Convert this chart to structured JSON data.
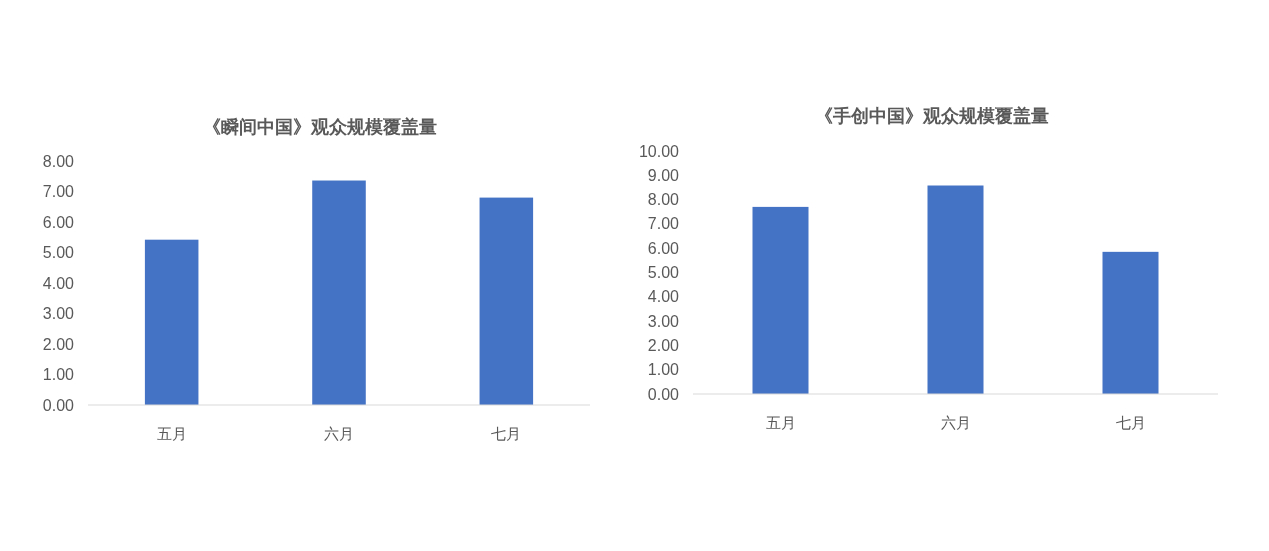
{
  "chart_data": [
    {
      "type": "bar",
      "title": "《瞬间中国》观众规模覆盖量",
      "categories": [
        "五月",
        "六月",
        "七月"
      ],
      "values": [
        5.42,
        7.36,
        6.8
      ],
      "color": "#4472c4",
      "ylim": [
        0,
        8
      ],
      "yticks": [
        {
          "value": 0,
          "label": "0.00"
        },
        {
          "value": 1,
          "label": "1.00"
        },
        {
          "value": 2,
          "label": "2.00"
        },
        {
          "value": 3,
          "label": "3.00"
        },
        {
          "value": 4,
          "label": "4.00"
        },
        {
          "value": 5,
          "label": "5.00"
        },
        {
          "value": 6,
          "label": "6.00"
        },
        {
          "value": 7,
          "label": "7.00"
        },
        {
          "value": 8,
          "label": "8.00"
        }
      ]
    },
    {
      "type": "bar",
      "title": "《手创中国》观众规模覆盖量",
      "categories": [
        "五月",
        "六月",
        "七月"
      ],
      "values": [
        7.7,
        8.58,
        5.85
      ],
      "color": "#4472c4",
      "ylim": [
        0,
        10
      ],
      "yticks": [
        {
          "value": 0,
          "label": "0.00"
        },
        {
          "value": 1,
          "label": "1.00"
        },
        {
          "value": 2,
          "label": "2.00"
        },
        {
          "value": 3,
          "label": "3.00"
        },
        {
          "value": 4,
          "label": "4.00"
        },
        {
          "value": 5,
          "label": "5.00"
        },
        {
          "value": 6,
          "label": "6.00"
        },
        {
          "value": 7,
          "label": "7.00"
        },
        {
          "value": 8,
          "label": "8.00"
        },
        {
          "value": 9,
          "label": "9.00"
        },
        {
          "value": 10,
          "label": "10.00"
        }
      ]
    }
  ]
}
